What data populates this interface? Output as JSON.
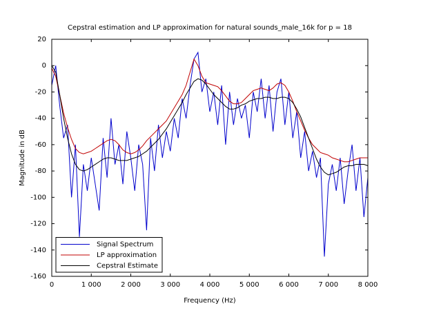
{
  "chart_data": {
    "type": "line",
    "title": "Cepstral estimation and LP approximation for natural sounds_male_16k for p = 18",
    "x_label": "Frequency (Hz)",
    "y_label": "Magnitude in dB",
    "x": [
      0,
      100,
      200,
      300,
      400,
      500,
      600,
      700,
      800,
      900,
      1000,
      1100,
      1200,
      1300,
      1400,
      1500,
      1600,
      1700,
      1800,
      1900,
      2000,
      2100,
      2200,
      2300,
      2400,
      2500,
      2600,
      2700,
      2800,
      2900,
      3000,
      3100,
      3200,
      3300,
      3400,
      3500,
      3600,
      3700,
      3800,
      3900,
      4000,
      4100,
      4200,
      4300,
      4400,
      4500,
      4600,
      4700,
      4800,
      4900,
      5000,
      5100,
      5200,
      5300,
      5400,
      5500,
      5600,
      5700,
      5800,
      5900,
      6000,
      6100,
      6200,
      6300,
      6400,
      6500,
      6600,
      6700,
      6800,
      6900,
      7000,
      7100,
      7200,
      7300,
      7400,
      7500,
      7600,
      7700,
      7800,
      7900,
      8000
    ],
    "series": [
      {
        "name": "Signal Spectrum",
        "color": "#0000cc",
        "values": [
          -15,
          0,
          -30,
          -55,
          -45,
          -100,
          -60,
          -130,
          -75,
          -95,
          -70,
          -90,
          -110,
          -55,
          -85,
          -40,
          -75,
          -60,
          -90,
          -50,
          -70,
          -95,
          -60,
          -75,
          -125,
          -55,
          -80,
          -45,
          -70,
          -50,
          -65,
          -40,
          -55,
          -25,
          -40,
          -15,
          5,
          10,
          -20,
          -10,
          -35,
          -20,
          -45,
          -15,
          -60,
          -20,
          -45,
          -25,
          -40,
          -30,
          -55,
          -20,
          -35,
          -10,
          -40,
          -15,
          -50,
          -20,
          -10,
          -45,
          -20,
          -55,
          -35,
          -70,
          -50,
          -80,
          -65,
          -85,
          -70,
          -145,
          -90,
          -75,
          -95,
          -70,
          -105,
          -80,
          -60,
          -95,
          -70,
          -115,
          -85
        ]
      },
      {
        "name": "LP approximation",
        "color": "#c00000",
        "values": [
          -2,
          -8,
          -22,
          -36,
          -47,
          -56,
          -63,
          -66,
          -67,
          -66,
          -65,
          -63,
          -61,
          -59,
          -57,
          -56,
          -57,
          -60,
          -64,
          -66,
          -67,
          -66,
          -64,
          -61,
          -57,
          -54,
          -51,
          -48,
          -45,
          -42,
          -37,
          -32,
          -27,
          -22,
          -15,
          -5,
          5,
          0,
          -8,
          -13,
          -14,
          -15,
          -16,
          -19,
          -23,
          -27,
          -29,
          -29,
          -28,
          -25,
          -22,
          -19,
          -18,
          -17,
          -18,
          -19,
          -17,
          -14,
          -13,
          -15,
          -20,
          -27,
          -35,
          -42,
          -49,
          -55,
          -60,
          -63,
          -66,
          -67,
          -68,
          -70,
          -71,
          -72,
          -73,
          -73,
          -72,
          -71,
          -70,
          -70,
          -70
        ]
      },
      {
        "name": "Cepstral Estimate",
        "color": "#000000",
        "values": [
          0,
          -5,
          -22,
          -40,
          -55,
          -67,
          -75,
          -79,
          -80,
          -79,
          -77,
          -75,
          -73,
          -71,
          -70,
          -70,
          -71,
          -72,
          -72,
          -72,
          -71,
          -70,
          -69,
          -67,
          -65,
          -62,
          -59,
          -56,
          -52,
          -48,
          -43,
          -38,
          -33,
          -28,
          -22,
          -17,
          -12,
          -10,
          -11,
          -14,
          -18,
          -22,
          -25,
          -28,
          -31,
          -33,
          -33,
          -32,
          -30,
          -29,
          -27,
          -26,
          -25,
          -25,
          -24,
          -24,
          -25,
          -25,
          -24,
          -24,
          -25,
          -28,
          -33,
          -39,
          -47,
          -55,
          -63,
          -71,
          -77,
          -81,
          -83,
          -82,
          -81,
          -79,
          -77,
          -76,
          -76,
          -75,
          -75,
          -75,
          -76
        ]
      }
    ],
    "xlim": [
      0,
      8000
    ],
    "ylim": [
      -160,
      20
    ],
    "xticks": [
      0,
      {
        "value": 1000,
        "label": "1 000"
      },
      {
        "value": 2000,
        "label": "2 000"
      },
      {
        "value": 3000,
        "label": "3 000"
      },
      {
        "value": 4000,
        "label": "4 000"
      },
      {
        "value": 5000,
        "label": "5 000"
      },
      {
        "value": 6000,
        "label": "6 000"
      },
      {
        "value": 7000,
        "label": "7 000"
      },
      {
        "value": 8000,
        "label": "8 000"
      }
    ],
    "yticks": [
      -160,
      -140,
      -120,
      -100,
      -80,
      -60,
      -40,
      -20,
      0,
      20
    ],
    "legend": "lower left"
  }
}
